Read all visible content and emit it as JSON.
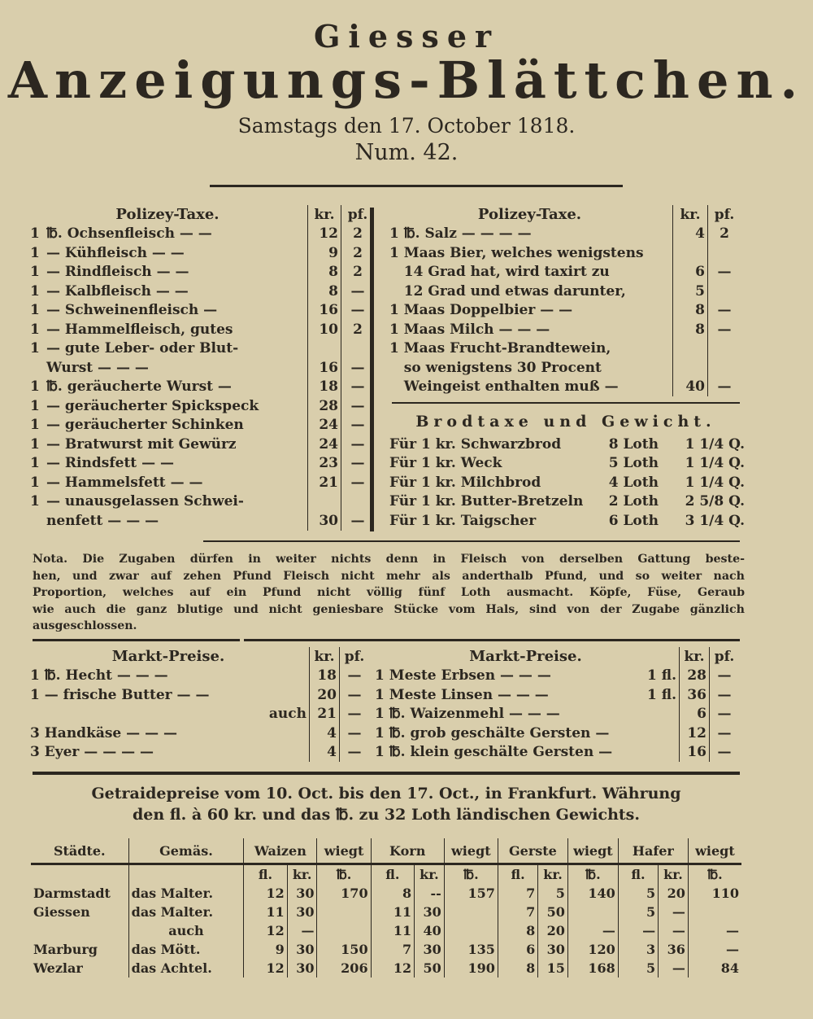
{
  "header": {
    "title_small": "Giesser",
    "title_large": "Anzeigungs-Blättchen.",
    "date": "Samstags den 17. October 1818.",
    "number": "Num. 42."
  },
  "polizey_left": {
    "title": "Polizey-Taxe.",
    "col_kr": "kr.",
    "col_pf": "pf.",
    "rows": [
      [
        "1",
        "℔. Ochsenfleisch — —",
        "12",
        "2"
      ],
      [
        "1",
        "— Kühfleisch — —",
        "9",
        "2"
      ],
      [
        "1",
        "— Rindfleisch — —",
        "8",
        "2"
      ],
      [
        "1",
        "— Kalbfleisch — —",
        "8",
        "—"
      ],
      [
        "1",
        "— Schweinenfleisch —",
        "16",
        "—"
      ],
      [
        "1",
        "— Hammelfleisch, gutes",
        "10",
        "2"
      ],
      [
        "1",
        "— gute Leber- oder Blut-",
        "",
        ""
      ],
      [
        "",
        "Wurst — — —",
        "16",
        "—"
      ],
      [
        "1",
        "℔. geräucherte Wurst —",
        "18",
        "—"
      ],
      [
        "1",
        "— geräucherter Spickspeck",
        "28",
        "—"
      ],
      [
        "1",
        "— geräucherter Schinken",
        "24",
        "—"
      ],
      [
        "1",
        "— Bratwurst mit Gewürz",
        "24",
        "—"
      ],
      [
        "1",
        "— Rindsfett — —",
        "23",
        "—"
      ],
      [
        "1",
        "— Hammelsfett — —",
        "21",
        "—"
      ],
      [
        "1",
        "— unausgelassen Schwei-",
        "",
        ""
      ],
      [
        "",
        "nenfett — — —",
        "30",
        "—"
      ]
    ]
  },
  "polizey_right": {
    "title": "Polizey-Taxe.",
    "col_kr": "kr.",
    "col_pf": "pf.",
    "rows": [
      [
        "1 ℔. Salz — — — —",
        "4",
        "2"
      ],
      [
        "1 Maas Bier, welches wenigstens",
        "",
        ""
      ],
      [
        "   14 Grad hat, wird taxirt zu",
        "6",
        "—"
      ],
      [
        "   12 Grad und etwas darunter,",
        "5",
        ""
      ],
      [
        "1 Maas Doppelbier — —",
        "8",
        "—"
      ],
      [
        "1 Maas Milch — — —",
        "8",
        "—"
      ],
      [
        "1 Maas Frucht-Brandtewein,",
        "",
        ""
      ],
      [
        "   so wenigstens 30 Procent",
        "",
        ""
      ],
      [
        "   Weingeist enthalten muß —",
        "40",
        "—"
      ]
    ]
  },
  "brodtaxe": {
    "title": "Brodtaxe und Gewicht.",
    "rows": [
      [
        "Für 1 kr. Schwarzbrod",
        "8 Loth",
        "1 1/4 Q."
      ],
      [
        "Für 1 kr. Weck",
        "5 Loth",
        "1 1/4 Q."
      ],
      [
        "Für 1 kr. Milchbrod",
        "4 Loth",
        "1 1/4 Q."
      ],
      [
        "Für 1 kr. Butter-Bretzeln",
        "2 Loth",
        "2 5/8 Q."
      ],
      [
        "Für 1 kr. Taigscher",
        "6 Loth",
        "3 1/4 Q."
      ]
    ]
  },
  "nota": {
    "lines": [
      "Nota. Die Zugaben dürfen in weiter nichts denn in Fleisch von derselben Gattung beste-",
      "hen, und zwar auf zehen Pfund Fleisch nicht mehr als anderthalb Pfund, und so weiter nach",
      "Proportion, welches auf ein Pfund nicht völlig fünf Loth ausmacht. Köpfe, Füse, Geraub",
      "wie auch die ganz blutige und nicht geniesbare Stücke vom Hals, sind von der Zugabe gänzlich",
      "ausgeschlossen."
    ]
  },
  "markt_left": {
    "title": "Markt-Preise.",
    "col_kr": "kr.",
    "col_pf": "pf.",
    "rows": [
      [
        "1 ℔. Hecht — — —",
        "18",
        "—"
      ],
      [
        "1 — frische Butter — —",
        "20",
        "—"
      ],
      [
        "auch",
        "21",
        "—"
      ],
      [
        "3 Handkäse — — —",
        "4",
        "—"
      ],
      [
        "3 Eyer — — — —",
        "4",
        "—"
      ]
    ]
  },
  "markt_right": {
    "title": "Markt-Preise.",
    "col_kr": "kr.",
    "col_pf": "pf.",
    "rows": [
      [
        "1 Meste Erbsen — — —",
        "1 fl.",
        "28",
        "—"
      ],
      [
        "1 Meste Linsen — — —",
        "1 fl.",
        "36",
        "—"
      ],
      [
        "1 ℔. Waizenmehl — — —",
        "",
        "6",
        "—"
      ],
      [
        "1 ℔. grob geschälte Gersten —",
        "",
        "12",
        "—"
      ],
      [
        "1 ℔. klein geschälte Gersten —",
        "",
        "16",
        "—"
      ]
    ]
  },
  "getraide": {
    "heading_1": "Getraidepreise vom 10. Oct. bis den 17. Oct., in Frankfurt. Währung",
    "heading_2": "den fl. à 60 kr. und das ℔. zu 32 Loth ländischen Gewichts.",
    "headers": [
      "Städte.",
      "Gemäs.",
      "Waizen",
      "wiegt",
      "Korn",
      "wiegt",
      "Gerste",
      "wiegt",
      "Hafer",
      "wiegt"
    ],
    "subheaders": [
      "",
      "",
      "fl.",
      "kr.",
      "℔.",
      "fl.",
      "kr.",
      "℔.",
      "fl.",
      "kr.",
      "℔.",
      "fl.",
      "kr.",
      "℔."
    ],
    "rows": [
      [
        "Darmstadt",
        "das Malter.",
        "12",
        "30",
        "170",
        "8",
        "--",
        "157",
        "7",
        "5",
        "140",
        "5",
        "20",
        "110"
      ],
      [
        "Giessen",
        "das Malter.",
        "11",
        "30",
        "",
        "11",
        "30",
        "",
        "7",
        "50",
        "",
        "5",
        "—",
        ""
      ],
      [
        "",
        "auch",
        "12",
        "—",
        "",
        "11",
        "40",
        "",
        "8",
        "20",
        "—",
        "—",
        "—",
        "—"
      ],
      [
        "Marburg",
        "das Mött.",
        "9",
        "30",
        "150",
        "7",
        "30",
        "135",
        "6",
        "30",
        "120",
        "3",
        "36",
        "—"
      ],
      [
        "Wezlar",
        "das Achtel.",
        "12",
        "30",
        "206",
        "12",
        "50",
        "190",
        "8",
        "15",
        "168",
        "5",
        "—",
        "84"
      ]
    ]
  }
}
